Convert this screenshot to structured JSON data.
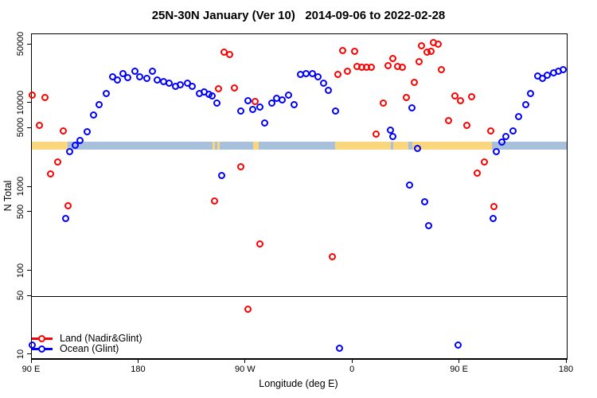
{
  "chart_data": {
    "type": "scatter",
    "title": "25N-30N January (Ver 10)   2014-09-06 to 2022-02-28",
    "xlabel": "Longitude (deg E)",
    "ylabel": "N Total",
    "x_axis": {
      "min": 90,
      "max": 540,
      "ticks": [
        {
          "value": 90,
          "label": "90 E"
        },
        {
          "value": 180,
          "label": "180"
        },
        {
          "value": 270,
          "label": "90 W"
        },
        {
          "value": 360,
          "label": "0"
        },
        {
          "value": 450,
          "label": "90 E"
        },
        {
          "value": 540,
          "label": "180"
        }
      ]
    },
    "y_axis": {
      "scale": "log",
      "min": 10,
      "max": 50000,
      "ticks": [
        {
          "value": 10,
          "label": "10"
        },
        {
          "value": 50,
          "label": "50"
        },
        {
          "value": 100,
          "label": "100"
        },
        {
          "value": 500,
          "label": "500"
        },
        {
          "value": 1000,
          "label": "1000"
        },
        {
          "value": 5000,
          "label": "5000"
        },
        {
          "value": 10000,
          "label": "10000"
        },
        {
          "value": 50000,
          "label": "50000"
        }
      ]
    },
    "reference_line": {
      "y": 50
    },
    "surface_band": {
      "n_from": 2770,
      "n_to": 3500,
      "colors": {
        "land": "#FAD77E",
        "ocean": "#A9C0DC"
      },
      "segments": [
        {
          "from": 90,
          "to": 120,
          "surface": "land"
        },
        {
          "from": 120,
          "to": 242,
          "surface": "ocean"
        },
        {
          "from": 242,
          "to": 244,
          "surface": "land"
        },
        {
          "from": 244,
          "to": 246,
          "surface": "ocean"
        },
        {
          "from": 246,
          "to": 248,
          "surface": "land"
        },
        {
          "from": 248,
          "to": 276,
          "surface": "ocean"
        },
        {
          "from": 276,
          "to": 281,
          "surface": "land"
        },
        {
          "from": 281,
          "to": 345,
          "surface": "ocean"
        },
        {
          "from": 345,
          "to": 392,
          "surface": "land"
        },
        {
          "from": 392,
          "to": 394,
          "surface": "ocean"
        },
        {
          "from": 394,
          "to": 407,
          "surface": "land"
        },
        {
          "from": 407,
          "to": 410,
          "surface": "ocean"
        },
        {
          "from": 410,
          "to": 477,
          "surface": "land"
        },
        {
          "from": 477,
          "to": 540,
          "surface": "ocean"
        }
      ]
    },
    "series": [
      {
        "name": "Land (Nadir&Glint)",
        "color": "#FF0000",
        "points": [
          [
            90.5,
            12400
          ],
          [
            96.5,
            5390
          ],
          [
            101,
            11600
          ],
          [
            106,
            1420
          ],
          [
            112,
            1970
          ],
          [
            117,
            4630
          ],
          [
            121,
            594
          ],
          [
            244,
            680
          ],
          [
            247,
            14800
          ],
          [
            252,
            40300
          ],
          [
            257,
            37700
          ],
          [
            261,
            15200
          ],
          [
            266,
            1730
          ],
          [
            272,
            35
          ],
          [
            278,
            10400
          ],
          [
            282,
            208
          ],
          [
            343,
            146
          ],
          [
            348,
            21800
          ],
          [
            352,
            42000
          ],
          [
            356,
            23900
          ],
          [
            362,
            41200
          ],
          [
            364,
            27300
          ],
          [
            368,
            26700
          ],
          [
            372,
            26700
          ],
          [
            376,
            26700
          ],
          [
            380,
            4240
          ],
          [
            386,
            10000
          ],
          [
            390,
            27700
          ],
          [
            394,
            33700
          ],
          [
            398,
            27300
          ],
          [
            402,
            26700
          ],
          [
            405,
            11600
          ],
          [
            412,
            17500
          ],
          [
            416,
            30900
          ],
          [
            418,
            47900
          ],
          [
            423,
            40300
          ],
          [
            426,
            41100
          ],
          [
            428,
            52300
          ],
          [
            432,
            50000
          ],
          [
            435,
            24800
          ],
          [
            441,
            6140
          ],
          [
            446,
            12100
          ],
          [
            451,
            10600
          ],
          [
            456,
            5370
          ],
          [
            460,
            11800
          ],
          [
            465,
            1450
          ],
          [
            471,
            1970
          ],
          [
            476,
            4630
          ],
          [
            479,
            581
          ]
        ]
      },
      {
        "name": "Ocean (Glint)",
        "color": "#0000FF",
        "points": [
          [
            90.5,
            13
          ],
          [
            119,
            420
          ],
          [
            122,
            2620
          ],
          [
            127,
            3130
          ],
          [
            131,
            3570
          ],
          [
            137,
            4530
          ],
          [
            142,
            7170
          ],
          [
            147,
            9530
          ],
          [
            153,
            12900
          ],
          [
            158,
            20500
          ],
          [
            162,
            18700
          ],
          [
            167,
            22400
          ],
          [
            171,
            20000
          ],
          [
            177,
            23900
          ],
          [
            181,
            20500
          ],
          [
            187,
            19600
          ],
          [
            192,
            23900
          ],
          [
            196,
            18700
          ],
          [
            201,
            17900
          ],
          [
            206,
            17100
          ],
          [
            211,
            15700
          ],
          [
            215,
            16400
          ],
          [
            221,
            17100
          ],
          [
            225,
            15700
          ],
          [
            231,
            12900
          ],
          [
            235,
            13500
          ],
          [
            239,
            12700
          ],
          [
            242,
            12100
          ],
          [
            246,
            10000
          ],
          [
            250,
            1360
          ],
          [
            266,
            8030
          ],
          [
            272,
            10700
          ],
          [
            276,
            8410
          ],
          [
            282,
            8990
          ],
          [
            286,
            5800
          ],
          [
            292,
            10000
          ],
          [
            296,
            11400
          ],
          [
            301,
            10900
          ],
          [
            306,
            12400
          ],
          [
            311,
            9530
          ],
          [
            316,
            21800
          ],
          [
            321,
            22400
          ],
          [
            326,
            22400
          ],
          [
            331,
            20500
          ],
          [
            336,
            17100
          ],
          [
            340,
            14100
          ],
          [
            346,
            8030
          ],
          [
            349,
            12
          ],
          [
            392,
            4730
          ],
          [
            394,
            3970
          ],
          [
            408,
            1050
          ],
          [
            410,
            8800
          ],
          [
            415,
            2860
          ],
          [
            421,
            660
          ],
          [
            424,
            344
          ],
          [
            449,
            13
          ],
          [
            478,
            420
          ],
          [
            481,
            2620
          ],
          [
            486,
            3410
          ],
          [
            489,
            3980
          ],
          [
            495,
            4630
          ],
          [
            500,
            6850
          ],
          [
            506,
            9530
          ],
          [
            510,
            12900
          ],
          [
            516,
            20900
          ],
          [
            520,
            19600
          ],
          [
            524,
            21400
          ],
          [
            529,
            22900
          ],
          [
            533,
            23900
          ],
          [
            537,
            24900
          ]
        ]
      }
    ]
  }
}
